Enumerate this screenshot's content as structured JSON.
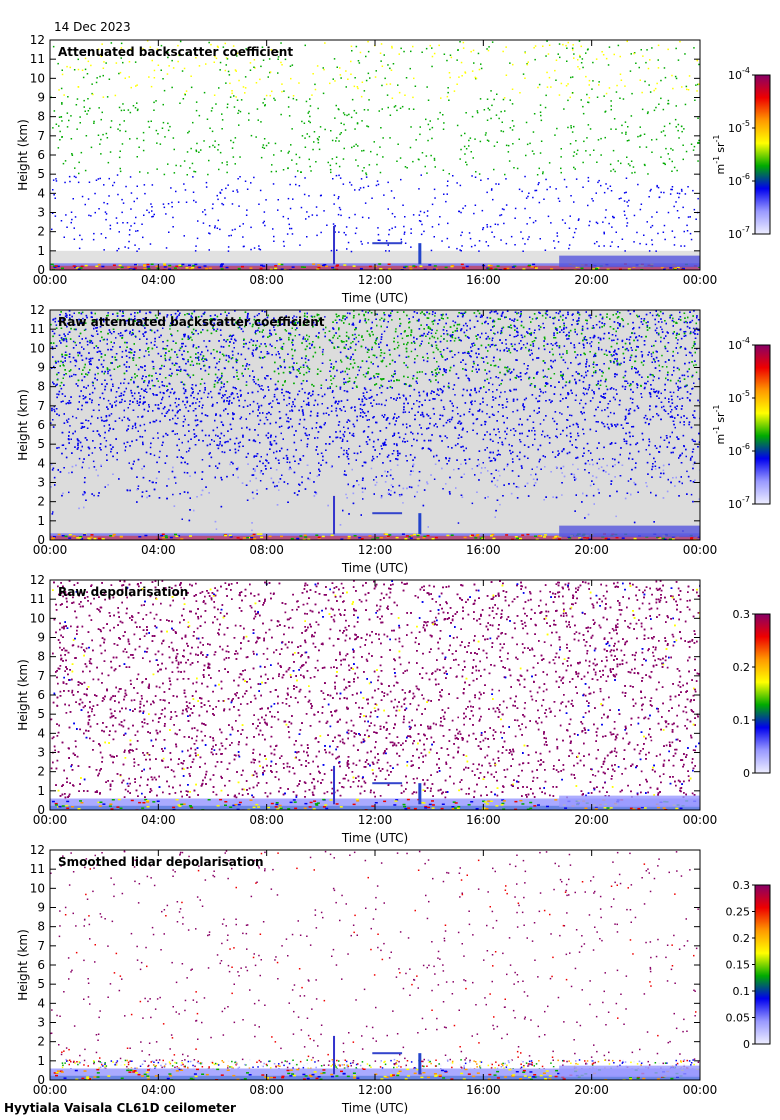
{
  "header": {
    "date": "14 Dec 2023"
  },
  "footer": {
    "caption": "Hyytiala Vaisala CL61D ceilometer"
  },
  "colors": {
    "axis": "#000000",
    "background_gray": "#dcdcdc",
    "colormap": [
      "#eeeeff",
      "#9999ff",
      "#0000ee",
      "#00aa00",
      "#ffff00",
      "#ff9900",
      "#ee0000",
      "#880066"
    ]
  },
  "chart_data": [
    {
      "type": "heatmap",
      "title": "Attenuated backscatter coefficient",
      "xlabel": "Time (UTC)",
      "ylabel": "Height (km)",
      "x_ticks": [
        "00:00",
        "04:00",
        "08:00",
        "12:00",
        "16:00",
        "20:00",
        "00:00"
      ],
      "y_ticks": [
        "0",
        "1",
        "2",
        "3",
        "4",
        "5",
        "6",
        "7",
        "8",
        "9",
        "10",
        "11",
        "12"
      ],
      "ylim": [
        0,
        12
      ],
      "scale": "log",
      "colorbar": {
        "ticks": [
          "10",
          "10",
          "10",
          "10"
        ],
        "exponents": [
          "-4",
          "-5",
          "-6",
          "-7"
        ],
        "unit": "m",
        "unit_exp": "-1",
        "unit2": "sr",
        "unit2_exp": "-1"
      }
    },
    {
      "type": "heatmap",
      "title": "Raw attenuated backscatter coefficient",
      "xlabel": "Time (UTC)",
      "ylabel": "Height (km)",
      "x_ticks": [
        "00:00",
        "04:00",
        "08:00",
        "12:00",
        "16:00",
        "20:00",
        "00:00"
      ],
      "y_ticks": [
        "0",
        "1",
        "2",
        "3",
        "4",
        "5",
        "6",
        "7",
        "8",
        "9",
        "10",
        "11",
        "12"
      ],
      "ylim": [
        0,
        12
      ],
      "scale": "log",
      "colorbar": {
        "ticks": [
          "10",
          "10",
          "10",
          "10"
        ],
        "exponents": [
          "-4",
          "-5",
          "-6",
          "-7"
        ],
        "unit": "m",
        "unit_exp": "-1",
        "unit2": "sr",
        "unit2_exp": "-1"
      }
    },
    {
      "type": "heatmap",
      "title": "Raw depolarisation",
      "xlabel": "Time (UTC)",
      "ylabel": "Height (km)",
      "x_ticks": [
        "00:00",
        "04:00",
        "08:00",
        "12:00",
        "16:00",
        "20:00",
        "00:00"
      ],
      "y_ticks": [
        "0",
        "1",
        "2",
        "3",
        "4",
        "5",
        "6",
        "7",
        "8",
        "9",
        "10",
        "11",
        "12"
      ],
      "ylim": [
        0,
        12
      ],
      "scale": "linear",
      "colorbar": {
        "ticks": [
          "0.3",
          "0.2",
          "0.1",
          "0"
        ]
      }
    },
    {
      "type": "heatmap",
      "title": "Smoothed lidar depolarisation",
      "xlabel": "Time (UTC)",
      "ylabel": "Height (km)",
      "x_ticks": [
        "00:00",
        "04:00",
        "08:00",
        "12:00",
        "16:00",
        "20:00",
        "00:00"
      ],
      "y_ticks": [
        "0",
        "1",
        "2",
        "3",
        "4",
        "5",
        "6",
        "7",
        "8",
        "9",
        "10",
        "11",
        "12"
      ],
      "ylim": [
        0,
        12
      ],
      "scale": "linear",
      "colorbar": {
        "ticks": [
          "0.3",
          "0.25",
          "0.2",
          "0.15",
          "0.1",
          "0.05",
          "0"
        ]
      }
    }
  ]
}
